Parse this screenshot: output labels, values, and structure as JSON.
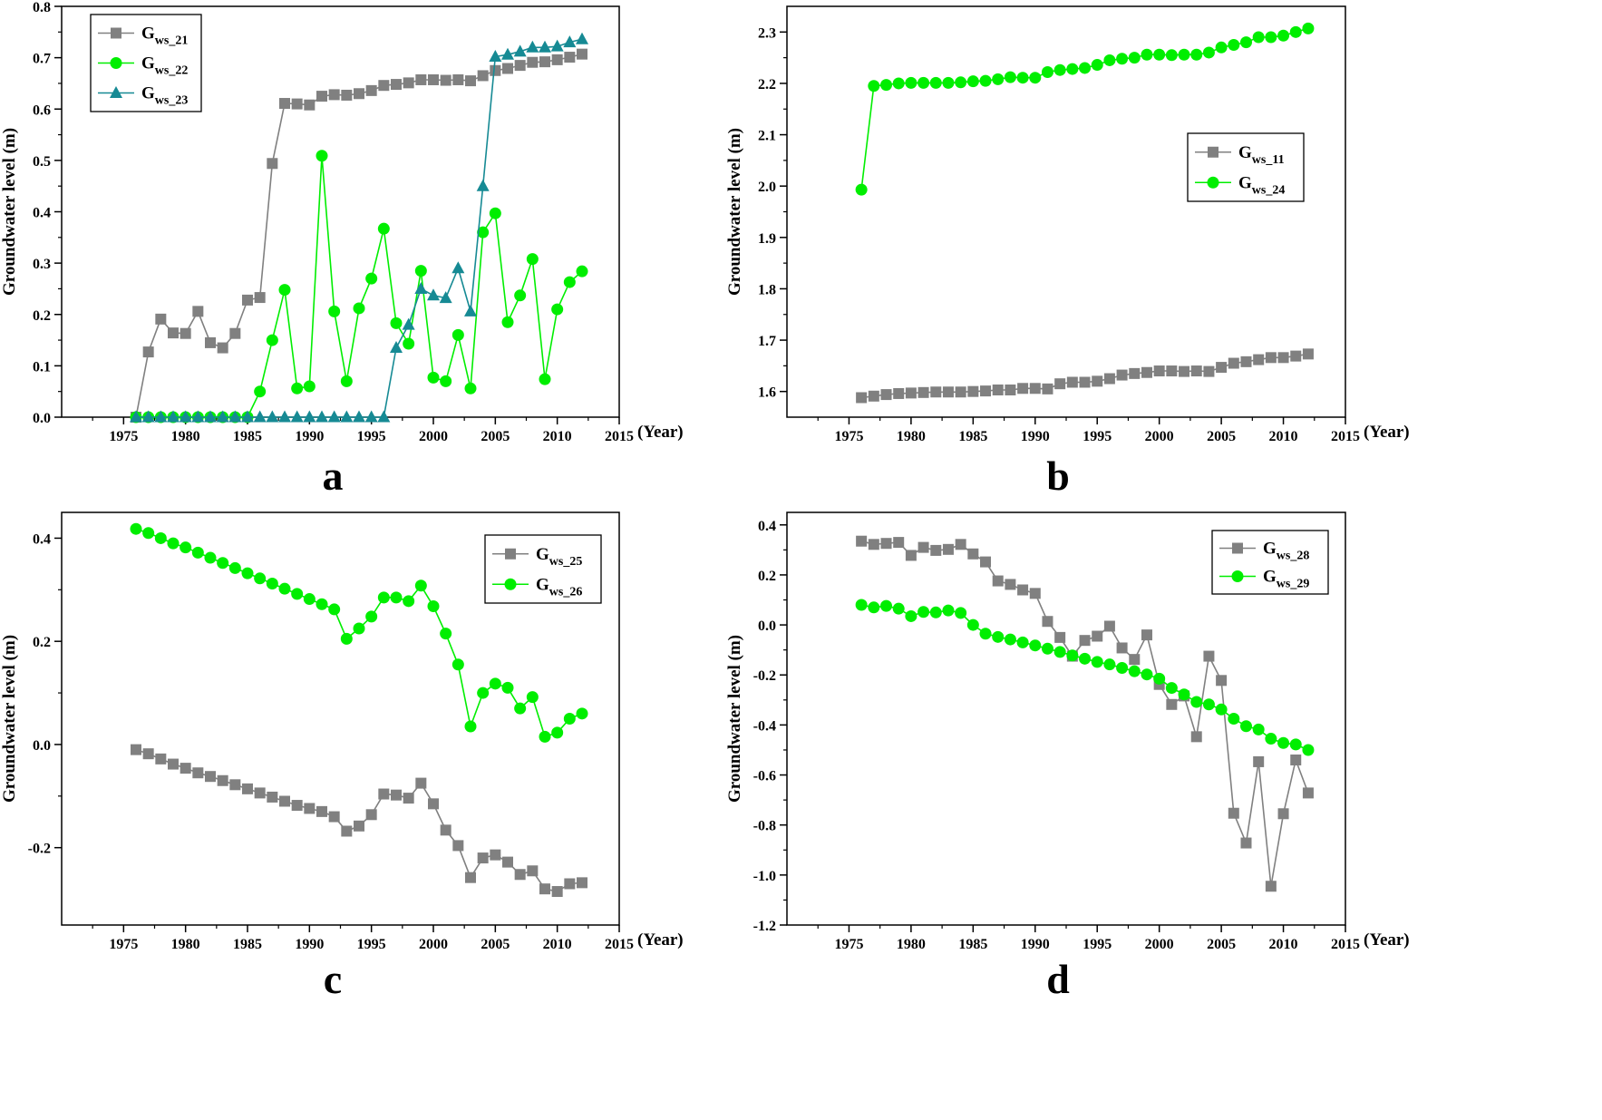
{
  "colors": {
    "gray": "#808080",
    "green": "#00ee00",
    "teal": "#168a94"
  },
  "chart_data": [
    {
      "panel_label": "a",
      "type": "line",
      "title": "",
      "xlabel": "(Year)",
      "ylabel": "Groundwater level (m)",
      "xlim": [
        1970,
        2015
      ],
      "ylim": [
        0.0,
        0.8
      ],
      "xticks": [
        1975,
        1980,
        1985,
        1990,
        1995,
        2000,
        2005,
        2010,
        2015
      ],
      "yticks": [
        0.0,
        0.1,
        0.2,
        0.3,
        0.4,
        0.5,
        0.6,
        0.7,
        0.8
      ],
      "ytick_labels": [
        "0.0",
        "0.1",
        "0.2",
        "0.3",
        "0.4",
        "0.5",
        "0.6",
        "0.7",
        "0.8"
      ],
      "legend_position": "top-left",
      "x": [
        1976,
        1977,
        1978,
        1979,
        1980,
        1981,
        1982,
        1983,
        1984,
        1985,
        1986,
        1987,
        1988,
        1989,
        1990,
        1991,
        1992,
        1993,
        1994,
        1995,
        1996,
        1997,
        1998,
        1999,
        2000,
        2001,
        2002,
        2003,
        2004,
        2005,
        2006,
        2007,
        2008,
        2009,
        2010,
        2011,
        2012
      ],
      "series": [
        {
          "name": "G",
          "sub": "ws_21",
          "marker": "square",
          "color": "gray",
          "values": [
            0.0,
            0.127,
            0.191,
            0.164,
            0.163,
            0.206,
            0.145,
            0.135,
            0.163,
            0.228,
            0.233,
            0.494,
            0.611,
            0.61,
            0.608,
            0.625,
            0.628,
            0.627,
            0.63,
            0.636,
            0.646,
            0.648,
            0.651,
            0.657,
            0.657,
            0.656,
            0.657,
            0.655,
            0.665,
            0.675,
            0.679,
            0.685,
            0.691,
            0.692,
            0.696,
            0.701,
            0.707
          ]
        },
        {
          "name": "G",
          "sub": "ws_22",
          "marker": "circle",
          "color": "green",
          "values": [
            0.0,
            0.0,
            0.0,
            0.0,
            0.0,
            0.0,
            0.0,
            0.0,
            0.0,
            0.0,
            0.05,
            0.15,
            0.248,
            0.056,
            0.06,
            0.509,
            0.206,
            0.07,
            0.212,
            0.27,
            0.367,
            0.183,
            0.143,
            0.285,
            0.077,
            0.07,
            0.16,
            0.056,
            0.36,
            0.397,
            0.185,
            0.237,
            0.308,
            0.074,
            0.21,
            0.263,
            0.284
          ]
        },
        {
          "name": "G",
          "sub": "ws_23",
          "marker": "triangle",
          "color": "teal",
          "values": [
            0.0,
            0.0,
            0.0,
            0.0,
            0.0,
            0.0,
            0.0,
            0.0,
            0.0,
            0.0,
            0.0,
            0.0,
            0.0,
            0.0,
            0.0,
            0.0,
            0.0,
            0.0,
            0.0,
            0.0,
            0.0,
            0.135,
            0.18,
            0.25,
            0.237,
            0.232,
            0.29,
            0.206,
            0.45,
            0.702,
            0.706,
            0.712,
            0.72,
            0.72,
            0.722,
            0.73,
            0.736
          ]
        }
      ]
    },
    {
      "panel_label": "b",
      "type": "line",
      "title": "",
      "xlabel": "(Year)",
      "ylabel": "Groundwater level (m)",
      "xlim": [
        1970,
        2015
      ],
      "ylim": [
        1.55,
        2.35
      ],
      "xticks": [
        1975,
        1980,
        1985,
        1990,
        1995,
        2000,
        2005,
        2010,
        2015
      ],
      "yticks": [
        1.6,
        1.7,
        1.8,
        1.9,
        2.0,
        2.1,
        2.2,
        2.3
      ],
      "ytick_labels": [
        "1.6",
        "1.7",
        "1.8",
        "1.9",
        "2.0",
        "2.1",
        "2.2",
        "2.3"
      ],
      "legend_position": "middle-right",
      "x": [
        1976,
        1977,
        1978,
        1979,
        1980,
        1981,
        1982,
        1983,
        1984,
        1985,
        1986,
        1987,
        1988,
        1989,
        1990,
        1991,
        1992,
        1993,
        1994,
        1995,
        1996,
        1997,
        1998,
        1999,
        2000,
        2001,
        2002,
        2003,
        2004,
        2005,
        2006,
        2007,
        2008,
        2009,
        2010,
        2011,
        2012
      ],
      "series": [
        {
          "name": "G",
          "sub": "ws_11",
          "marker": "square",
          "color": "gray",
          "values": [
            1.588,
            1.591,
            1.594,
            1.596,
            1.597,
            1.598,
            1.599,
            1.599,
            1.599,
            1.6,
            1.601,
            1.603,
            1.603,
            1.606,
            1.606,
            1.605,
            1.615,
            1.618,
            1.618,
            1.62,
            1.625,
            1.632,
            1.635,
            1.637,
            1.64,
            1.64,
            1.639,
            1.64,
            1.639,
            1.647,
            1.655,
            1.658,
            1.662,
            1.666,
            1.666,
            1.669,
            1.673
          ]
        },
        {
          "name": "G",
          "sub": "ws_24",
          "marker": "circle",
          "color": "green",
          "values": [
            1.993,
            2.195,
            2.197,
            2.2,
            2.201,
            2.201,
            2.201,
            2.201,
            2.202,
            2.204,
            2.205,
            2.208,
            2.212,
            2.211,
            2.211,
            2.222,
            2.226,
            2.228,
            2.23,
            2.236,
            2.245,
            2.248,
            2.25,
            2.256,
            2.256,
            2.255,
            2.256,
            2.256,
            2.26,
            2.27,
            2.275,
            2.28,
            2.29,
            2.29,
            2.293,
            2.3,
            2.307
          ]
        }
      ]
    },
    {
      "panel_label": "c",
      "type": "line",
      "title": "",
      "xlabel": "(Year)",
      "ylabel": "Groundwater level (m)",
      "xlim": [
        1970,
        2015
      ],
      "ylim": [
        -0.35,
        0.45
      ],
      "xticks": [
        1975,
        1980,
        1985,
        1990,
        1995,
        2000,
        2005,
        2010,
        2015
      ],
      "yticks": [
        -0.2,
        0.0,
        0.2,
        0.4
      ],
      "ytick_labels": [
        "-0.2",
        "0.0",
        "0.2",
        "0.4"
      ],
      "legend_position": "top-right",
      "x": [
        1976,
        1977,
        1978,
        1979,
        1980,
        1981,
        1982,
        1983,
        1984,
        1985,
        1986,
        1987,
        1988,
        1989,
        1990,
        1991,
        1992,
        1993,
        1994,
        1995,
        1996,
        1997,
        1998,
        1999,
        2000,
        2001,
        2002,
        2003,
        2004,
        2005,
        2006,
        2007,
        2008,
        2009,
        2010,
        2011,
        2012
      ],
      "series": [
        {
          "name": "G",
          "sub": "ws_25",
          "marker": "square",
          "color": "gray",
          "values": [
            -0.01,
            -0.018,
            -0.028,
            -0.038,
            -0.046,
            -0.055,
            -0.062,
            -0.07,
            -0.078,
            -0.086,
            -0.094,
            -0.102,
            -0.11,
            -0.118,
            -0.124,
            -0.13,
            -0.14,
            -0.168,
            -0.158,
            -0.136,
            -0.096,
            -0.098,
            -0.104,
            -0.075,
            -0.115,
            -0.166,
            -0.196,
            -0.258,
            -0.22,
            -0.214,
            -0.228,
            -0.252,
            -0.245,
            -0.28,
            -0.285,
            -0.27,
            -0.268
          ]
        },
        {
          "name": "G",
          "sub": "ws_26",
          "marker": "circle",
          "color": "green",
          "values": [
            0.418,
            0.41,
            0.4,
            0.39,
            0.382,
            0.372,
            0.362,
            0.352,
            0.342,
            0.332,
            0.322,
            0.312,
            0.302,
            0.292,
            0.282,
            0.272,
            0.262,
            0.205,
            0.225,
            0.248,
            0.285,
            0.285,
            0.278,
            0.308,
            0.268,
            0.215,
            0.155,
            0.035,
            0.1,
            0.118,
            0.11,
            0.07,
            0.092,
            0.015,
            0.023,
            0.05,
            0.06
          ]
        }
      ]
    },
    {
      "panel_label": "d",
      "type": "line",
      "title": "",
      "xlabel": "(Year)",
      "ylabel": "Groundwater level (m)",
      "xlim": [
        1970,
        2015
      ],
      "ylim": [
        -1.2,
        0.45
      ],
      "xticks": [
        1975,
        1980,
        1985,
        1990,
        1995,
        2000,
        2005,
        2010,
        2015
      ],
      "yticks": [
        -1.2,
        -1.0,
        -0.8,
        -0.6,
        -0.4,
        -0.2,
        0.0,
        0.2,
        0.4
      ],
      "ytick_labels": [
        "-1.2",
        "-1.0",
        "-0.8",
        "-0.6",
        "-0.4",
        "-0.2",
        "0.0",
        "0.2",
        "0.4"
      ],
      "legend_position": "top-right",
      "x": [
        1976,
        1977,
        1978,
        1979,
        1980,
        1981,
        1982,
        1983,
        1984,
        1985,
        1986,
        1987,
        1988,
        1989,
        1990,
        1991,
        1992,
        1993,
        1994,
        1995,
        1996,
        1997,
        1998,
        1999,
        2000,
        2001,
        2002,
        2003,
        2004,
        2005,
        2006,
        2007,
        2008,
        2009,
        2010,
        2011,
        2012
      ],
      "series": [
        {
          "name": "G",
          "sub": "ws_28",
          "marker": "square",
          "color": "gray",
          "values": [
            0.335,
            0.322,
            0.326,
            0.33,
            0.278,
            0.31,
            0.298,
            0.302,
            0.322,
            0.284,
            0.252,
            0.176,
            0.162,
            0.14,
            0.126,
            0.014,
            -0.05,
            -0.125,
            -0.062,
            -0.045,
            -0.005,
            -0.092,
            -0.138,
            -0.04,
            -0.238,
            -0.318,
            -0.284,
            -0.447,
            -0.125,
            -0.222,
            -0.753,
            -0.872,
            -0.547,
            -1.045,
            -0.755,
            -0.54,
            -0.672
          ]
        },
        {
          "name": "G",
          "sub": "ws_29",
          "marker": "circle",
          "color": "green",
          "values": [
            0.08,
            0.07,
            0.076,
            0.065,
            0.035,
            0.052,
            0.05,
            0.058,
            0.048,
            0.0,
            -0.035,
            -0.048,
            -0.058,
            -0.07,
            -0.082,
            -0.095,
            -0.108,
            -0.122,
            -0.135,
            -0.148,
            -0.158,
            -0.172,
            -0.185,
            -0.198,
            -0.215,
            -0.252,
            -0.278,
            -0.308,
            -0.318,
            -0.338,
            -0.375,
            -0.405,
            -0.418,
            -0.455,
            -0.472,
            -0.478,
            -0.5
          ]
        }
      ]
    }
  ]
}
